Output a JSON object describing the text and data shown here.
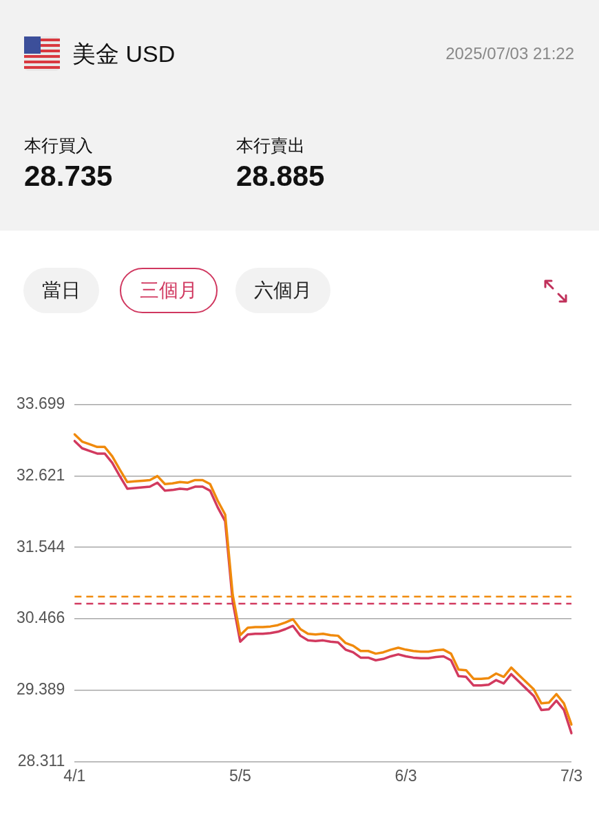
{
  "chart_data": {
    "type": "line",
    "title": "美金 USD",
    "annotations": [
      "2025/07/03 21:22",
      "本行買入",
      "28.735",
      "本行賣出",
      "28.885",
      "當日",
      "三個月",
      "六個月"
    ],
    "categories": [
      "4/1",
      null,
      null,
      null,
      null,
      null,
      null,
      null,
      null,
      null,
      null,
      null,
      null,
      null,
      null,
      null,
      null,
      null,
      null,
      null,
      null,
      null,
      "5/5",
      null,
      null,
      null,
      null,
      null,
      null,
      null,
      null,
      null,
      null,
      null,
      null,
      null,
      null,
      null,
      null,
      null,
      null,
      null,
      null,
      null,
      "6/3",
      null,
      null,
      null,
      null,
      null,
      null,
      null,
      null,
      null,
      null,
      null,
      null,
      null,
      null,
      null,
      null,
      null,
      null,
      null,
      null,
      null,
      "7/3"
    ],
    "series": [
      {
        "color": "#f08a0c",
        "values": [
          33.25,
          33.14,
          33.1,
          33.06,
          33.06,
          32.92,
          32.72,
          32.53,
          32.54,
          32.55,
          32.56,
          32.62,
          32.5,
          32.51,
          32.53,
          32.52,
          32.56,
          32.56,
          32.5,
          32.25,
          32.04,
          30.83,
          30.22,
          30.33,
          30.34,
          30.34,
          30.35,
          30.37,
          30.41,
          30.46,
          30.31,
          30.24,
          30.23,
          30.24,
          30.22,
          30.21,
          30.1,
          30.06,
          29.98,
          29.98,
          29.94,
          29.96,
          30.0,
          30.03,
          30.0,
          29.98,
          29.97,
          29.97,
          29.99,
          30.0,
          29.94,
          29.7,
          29.69,
          29.56,
          29.56,
          29.57,
          29.64,
          29.59,
          29.73,
          29.62,
          29.51,
          29.4,
          29.19,
          29.2,
          29.33,
          29.19,
          28.87
        ]
      },
      {
        "color": "#d23a5f",
        "values": [
          33.15,
          33.04,
          33.0,
          32.96,
          32.96,
          32.82,
          32.62,
          32.43,
          32.44,
          32.45,
          32.46,
          32.52,
          32.4,
          32.41,
          32.43,
          32.42,
          32.46,
          32.46,
          32.4,
          32.15,
          31.94,
          30.73,
          30.12,
          30.23,
          30.24,
          30.24,
          30.25,
          30.27,
          30.31,
          30.36,
          30.21,
          30.14,
          30.13,
          30.14,
          30.12,
          30.11,
          30.0,
          29.96,
          29.88,
          29.88,
          29.84,
          29.86,
          29.9,
          29.93,
          29.9,
          29.88,
          29.87,
          29.87,
          29.89,
          29.9,
          29.84,
          29.6,
          29.59,
          29.46,
          29.46,
          29.47,
          29.54,
          29.49,
          29.63,
          29.52,
          29.41,
          29.3,
          29.09,
          29.1,
          29.23,
          29.09,
          28.74
        ]
      }
    ],
    "ylim": [
      28.311,
      33.699
    ],
    "yticks": [
      28.311,
      29.389,
      30.466,
      31.544,
      32.621,
      33.699
    ],
    "grid": "y",
    "legend": false,
    "marker": "none",
    "line_style": "solid",
    "ref_lines": [
      {
        "axis": "y",
        "value": 30.8,
        "color": "#f08a0c",
        "line_style": "dashed"
      },
      {
        "axis": "y",
        "value": 30.695,
        "color": "#d23a5f",
        "line_style": "dashed"
      }
    ]
  }
}
